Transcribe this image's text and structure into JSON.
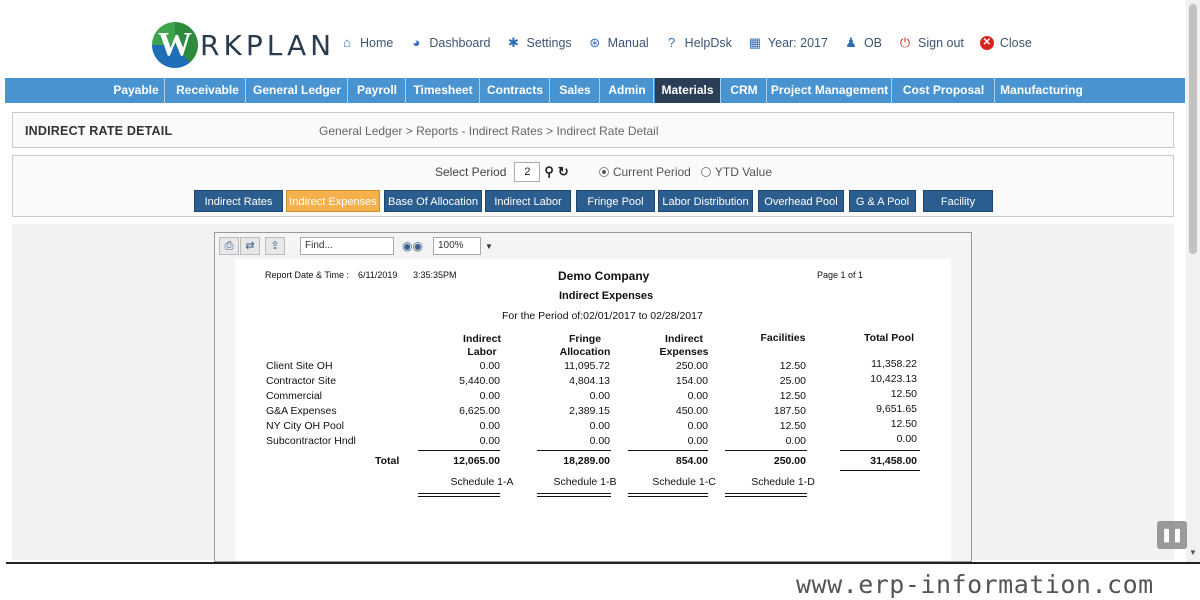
{
  "logo": {
    "letter": "W",
    "text": "RKPLAN"
  },
  "topnav": [
    {
      "icon": "home-icon",
      "glyph": "⌂",
      "label": "Home"
    },
    {
      "icon": "dashboard-icon",
      "glyph": "◕",
      "label": "Dashboard"
    },
    {
      "icon": "gear-icon",
      "glyph": "✱",
      "label": "Settings"
    },
    {
      "icon": "manual-icon",
      "glyph": "⊛",
      "label": "Manual"
    },
    {
      "icon": "help-icon",
      "glyph": "?",
      "label": "HelpDsk"
    },
    {
      "icon": "calendar-icon",
      "glyph": "▦",
      "label": "Year: 2017"
    },
    {
      "icon": "user-icon",
      "glyph": "♟",
      "label": "OB"
    },
    {
      "icon": "power-icon",
      "glyph": "⏻",
      "label": "Sign out"
    },
    {
      "icon": "close-icon",
      "glyph": "✕",
      "label": "Close"
    }
  ],
  "navbar": [
    "Payable",
    "Receivable",
    "General Ledger",
    "Payroll",
    "Timesheet",
    "Contracts",
    "Sales",
    "Admin",
    "Materials",
    "CRM",
    "Project Management",
    "Cost Proposal",
    "Manufacturing"
  ],
  "page": {
    "title": "INDIRECT RATE DETAIL",
    "breadcrumb": "General Ledger > Reports - Indirect Rates > Indirect Rate Detail"
  },
  "period": {
    "label": "Select Period",
    "value": "2",
    "radio_current": "Current Period",
    "radio_ytd": "YTD Value"
  },
  "tabs": [
    "Indirect Rates",
    "Indirect Expenses",
    "Base Of Allocation",
    "Indirect Labor",
    "Fringe Pool",
    "Labor Distribution",
    "Overhead Pool",
    "G & A Pool",
    "Facility"
  ],
  "viewer": {
    "find_placeholder": "Find...",
    "zoom": "100%"
  },
  "report": {
    "date_label": "Report Date & Time :",
    "date": "6/11/2019",
    "time": "3:35:35PM",
    "company": "Demo Company",
    "page": "Page 1 of 1",
    "name": "Indirect Expenses",
    "period": "For the Period of:02/01/2017 to 02/28/2017",
    "columns": [
      {
        "l1": "Indirect",
        "l2": "Labor"
      },
      {
        "l1": "Fringe",
        "l2": "Allocation"
      },
      {
        "l1": "Indirect",
        "l2": "Expenses"
      },
      {
        "l1": "Facilities",
        "l2": ""
      },
      {
        "l1": "Total Pool",
        "l2": ""
      }
    ],
    "rows": [
      {
        "name": "Client Site OH",
        "values": [
          "0.00",
          "11,095.72",
          "250.00",
          "12.50",
          "11,358.22"
        ]
      },
      {
        "name": "Contractor Site",
        "values": [
          "5,440.00",
          "4,804.13",
          "154.00",
          "25.00",
          "10,423.13"
        ]
      },
      {
        "name": "Commercial",
        "values": [
          "0.00",
          "0.00",
          "0.00",
          "12.50",
          "12.50"
        ]
      },
      {
        "name": "G&A Expenses",
        "values": [
          "6,625.00",
          "2,389.15",
          "450.00",
          "187.50",
          "9,651.65"
        ]
      },
      {
        "name": "NY City OH Pool",
        "values": [
          "0.00",
          "0.00",
          "0.00",
          "12.50",
          "12.50"
        ]
      },
      {
        "name": "Subcontractor Hndl",
        "values": [
          "0.00",
          "0.00",
          "0.00",
          "0.00",
          "0.00"
        ]
      }
    ],
    "total_label": "Total",
    "totals": [
      "12,065.00",
      "18,289.00",
      "854.00",
      "250.00",
      "31,458.00"
    ],
    "schedules": [
      "Schedule 1-A",
      "Schedule 1-B",
      "Schedule 1-C",
      "Schedule 1-D"
    ]
  },
  "watermark": "www.erp-information.com"
}
